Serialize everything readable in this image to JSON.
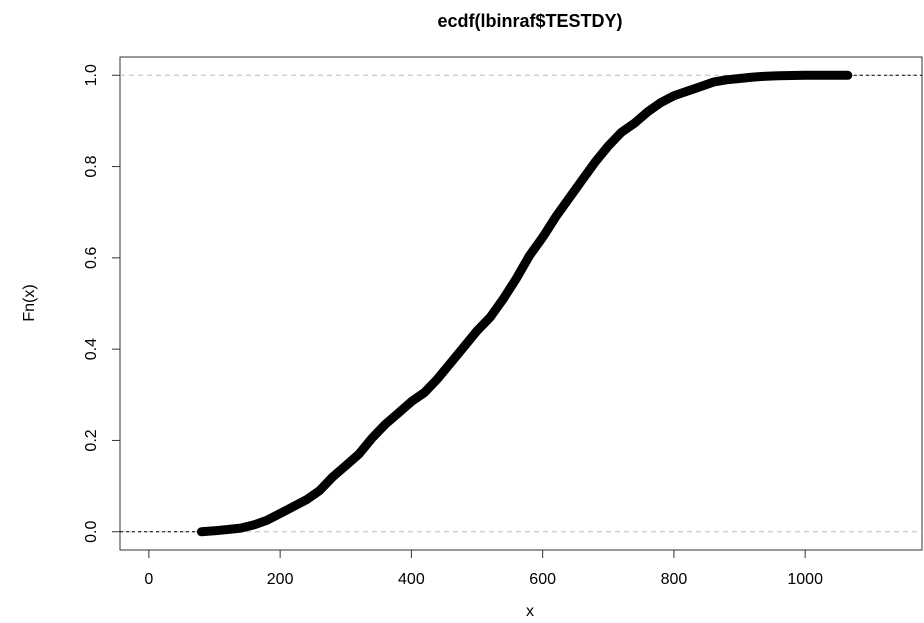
{
  "chart_data": {
    "type": "ecdf",
    "title": "ecdf(lbinraf$TESTDY)",
    "x_label": "x",
    "y_label": "Fn(x)",
    "series": [
      {
        "color": "#000000",
        "x": [
          80,
          100,
          120,
          140,
          160,
          180,
          200,
          220,
          240,
          260,
          280,
          300,
          320,
          340,
          360,
          380,
          400,
          420,
          440,
          460,
          480,
          500,
          520,
          540,
          560,
          580,
          600,
          620,
          640,
          660,
          680,
          700,
          720,
          740,
          760,
          780,
          800,
          820,
          840,
          860,
          880,
          900,
          920,
          940,
          960,
          980,
          1000,
          1010,
          1035,
          1065
        ],
        "values": [
          0.0,
          0.002,
          0.005,
          0.008,
          0.015,
          0.025,
          0.04,
          0.055,
          0.07,
          0.09,
          0.12,
          0.145,
          0.17,
          0.205,
          0.235,
          0.26,
          0.285,
          0.305,
          0.335,
          0.37,
          0.405,
          0.44,
          0.47,
          0.51,
          0.555,
          0.605,
          0.645,
          0.69,
          0.73,
          0.77,
          0.81,
          0.845,
          0.875,
          0.895,
          0.92,
          0.94,
          0.955,
          0.965,
          0.975,
          0.985,
          0.99,
          0.993,
          0.996,
          0.998,
          0.999,
          0.9995,
          1.0,
          1.0,
          1.0,
          1.0
        ]
      }
    ],
    "xlim": [
      -44,
      1178
    ],
    "ylim": [
      -0.04,
      1.04
    ],
    "xticks": [
      0,
      200,
      400,
      600,
      800,
      1000
    ],
    "yticks": [
      {
        "value": 0,
        "label": "0.0"
      },
      {
        "value": 0.2,
        "label": "0.2"
      },
      {
        "value": 0.4,
        "label": "0.4"
      },
      {
        "value": 0.6,
        "label": "0.6"
      },
      {
        "value": 0.8,
        "label": "0.8"
      },
      {
        "value": 1,
        "label": "1.0"
      }
    ],
    "hlines": [
      0,
      1
    ],
    "hline_color": "#bbbbbb"
  }
}
